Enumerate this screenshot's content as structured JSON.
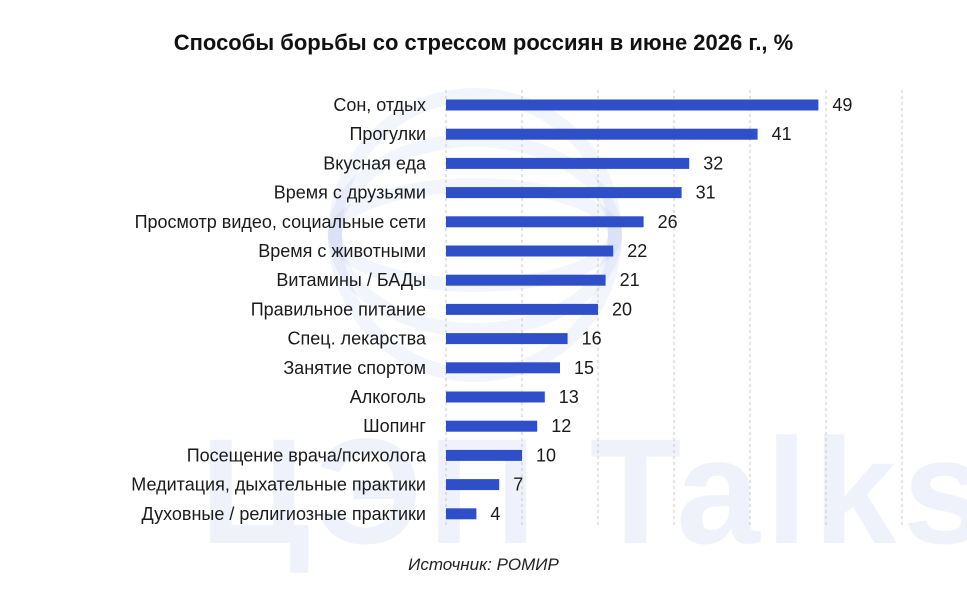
{
  "chart_data": {
    "type": "bar",
    "orientation": "horizontal",
    "title": "Способы борьбы со стрессом россиян в июне 2026 г., %",
    "categories": [
      "Сон, отдых",
      "Прогулки",
      "Вкусная еда",
      "Время с друзьями",
      "Просмотр видео, социальные сети",
      "Время с животными",
      "Витамины / БАДы",
      "Правильное питание",
      "Спец. лекарства",
      "Занятие спортом",
      "Алкоголь",
      "Шопинг",
      "Посещение врача/психолога",
      "Медитация, дыхательные практики",
      "Духовные / религиозные практики"
    ],
    "values": [
      49,
      41,
      32,
      31,
      26,
      22,
      21,
      20,
      16,
      15,
      13,
      12,
      10,
      7,
      4
    ],
    "xlim": [
      0,
      60
    ],
    "grid": true,
    "bar_color": "#2f4fc9",
    "xlabel": "",
    "ylabel": ""
  },
  "watermark": "ЦЭП Talks",
  "source": "Источник: РОМИР"
}
